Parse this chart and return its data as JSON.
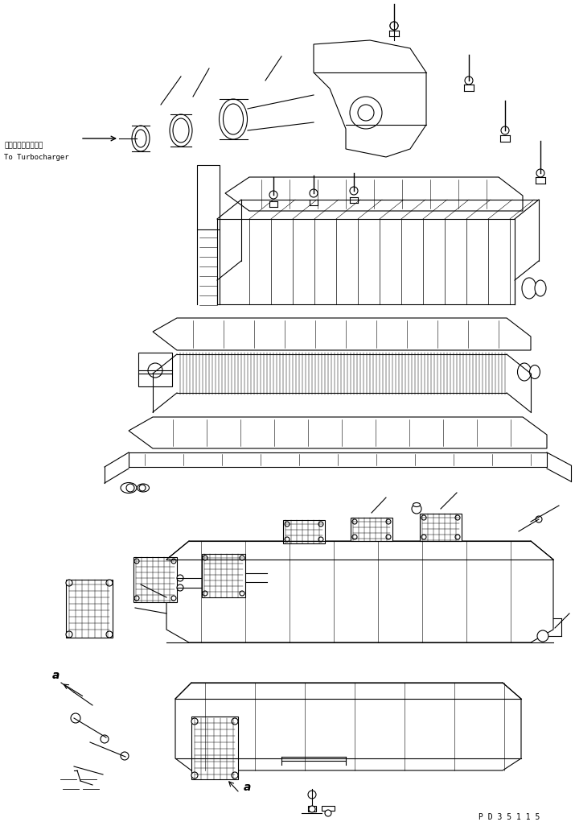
{
  "bg_color": "#ffffff",
  "line_color": "#000000",
  "label_jp": "ターボチャージャヘ",
  "label_en": "To Turbocharger",
  "label_a1": "a",
  "label_a2": "a",
  "part_number": "P D 3 5 1 1 5",
  "fig_width": 7.15,
  "fig_height": 10.26,
  "dpi": 100
}
